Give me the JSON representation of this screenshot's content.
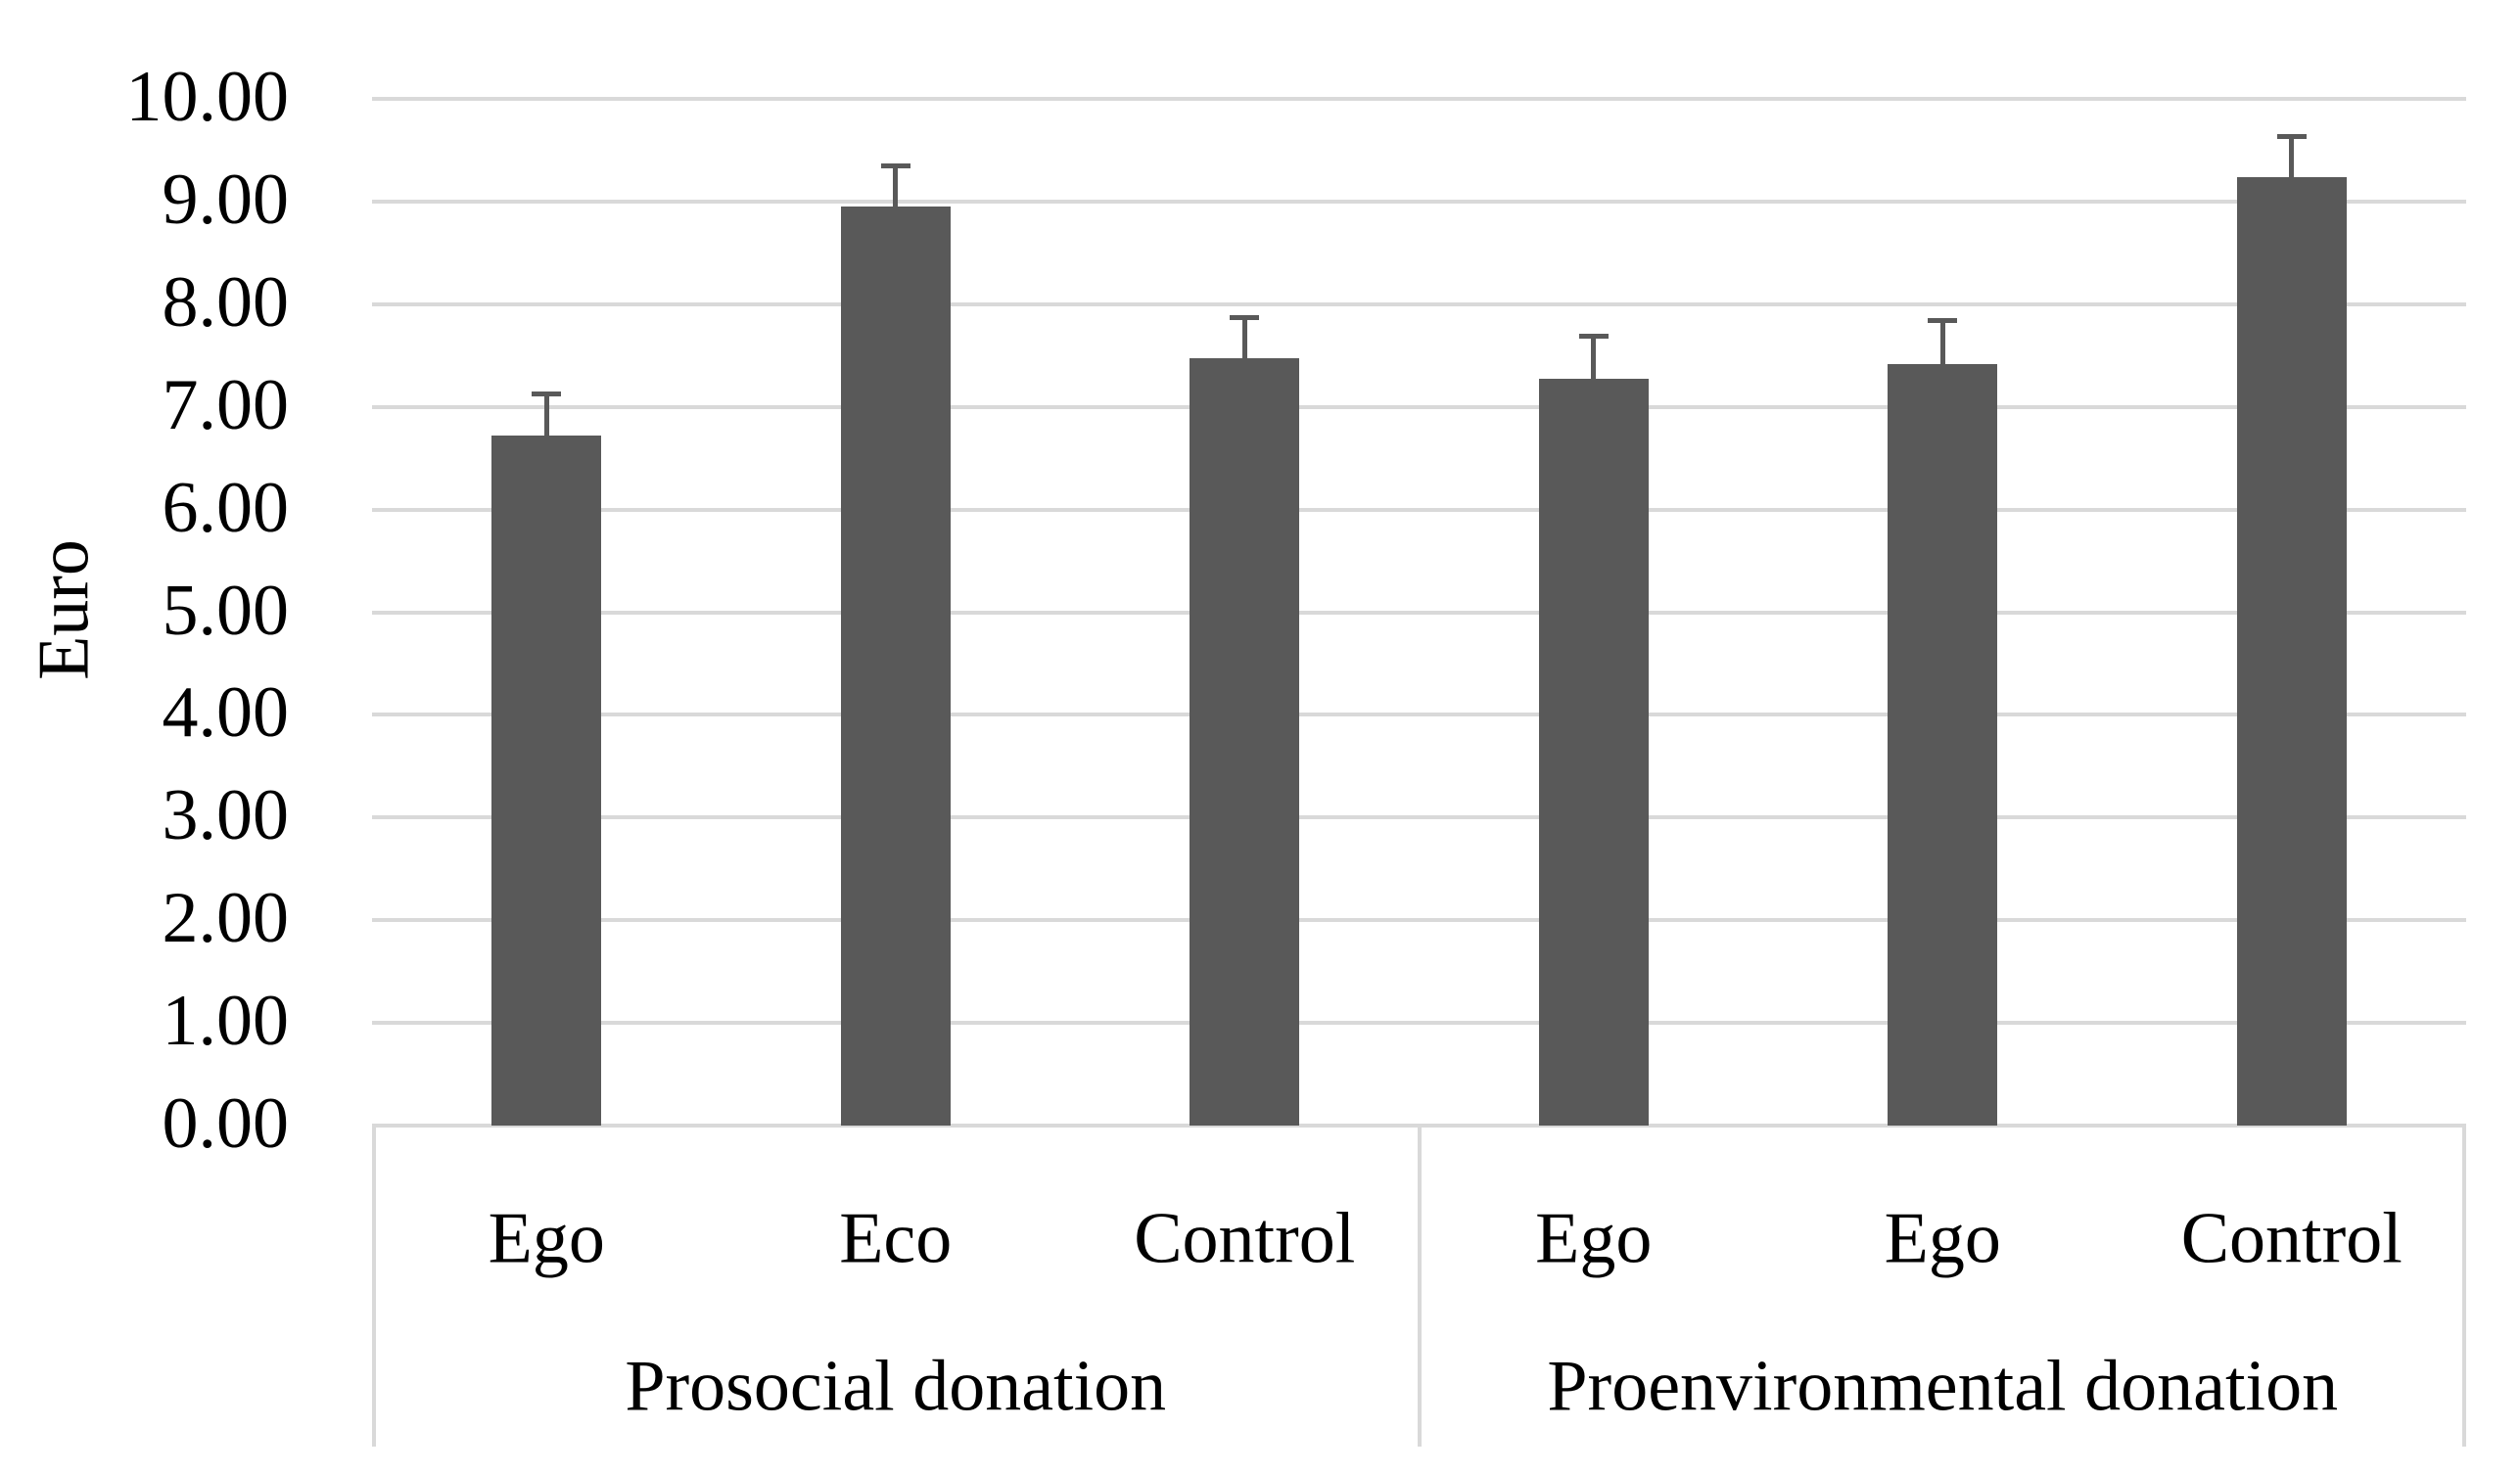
{
  "chart_data": {
    "type": "bar",
    "title": "",
    "ylabel": "Euro",
    "xlabel": "",
    "ylim": [
      0,
      10
    ],
    "ytick_step": 1.0,
    "ytick_labels": [
      "0.00",
      "1.00",
      "2.00",
      "3.00",
      "4.00",
      "5.00",
      "6.00",
      "7.00",
      "8.00",
      "9.00",
      "10.00"
    ],
    "grid": true,
    "legend_position": "none",
    "categories": [
      "Ego",
      "Eco",
      "Control",
      "Ego",
      "Ego",
      "Control"
    ],
    "groups": [
      {
        "label": "Prosocial donation",
        "start": 0,
        "count": 3
      },
      {
        "label": "Proenvironmental donation",
        "start": 3,
        "count": 3
      }
    ],
    "values": [
      6.72,
      8.95,
      7.47,
      7.27,
      7.42,
      9.24
    ],
    "error_plus": [
      0.41,
      0.4,
      0.4,
      0.42,
      0.43,
      0.4
    ],
    "colors": {
      "bar": "#595959",
      "error_bar": "#595959",
      "gridline": "#D9D9D9",
      "category_box_border": "#D9D9D9",
      "text": "#000000",
      "background": "#FFFFFF"
    }
  }
}
